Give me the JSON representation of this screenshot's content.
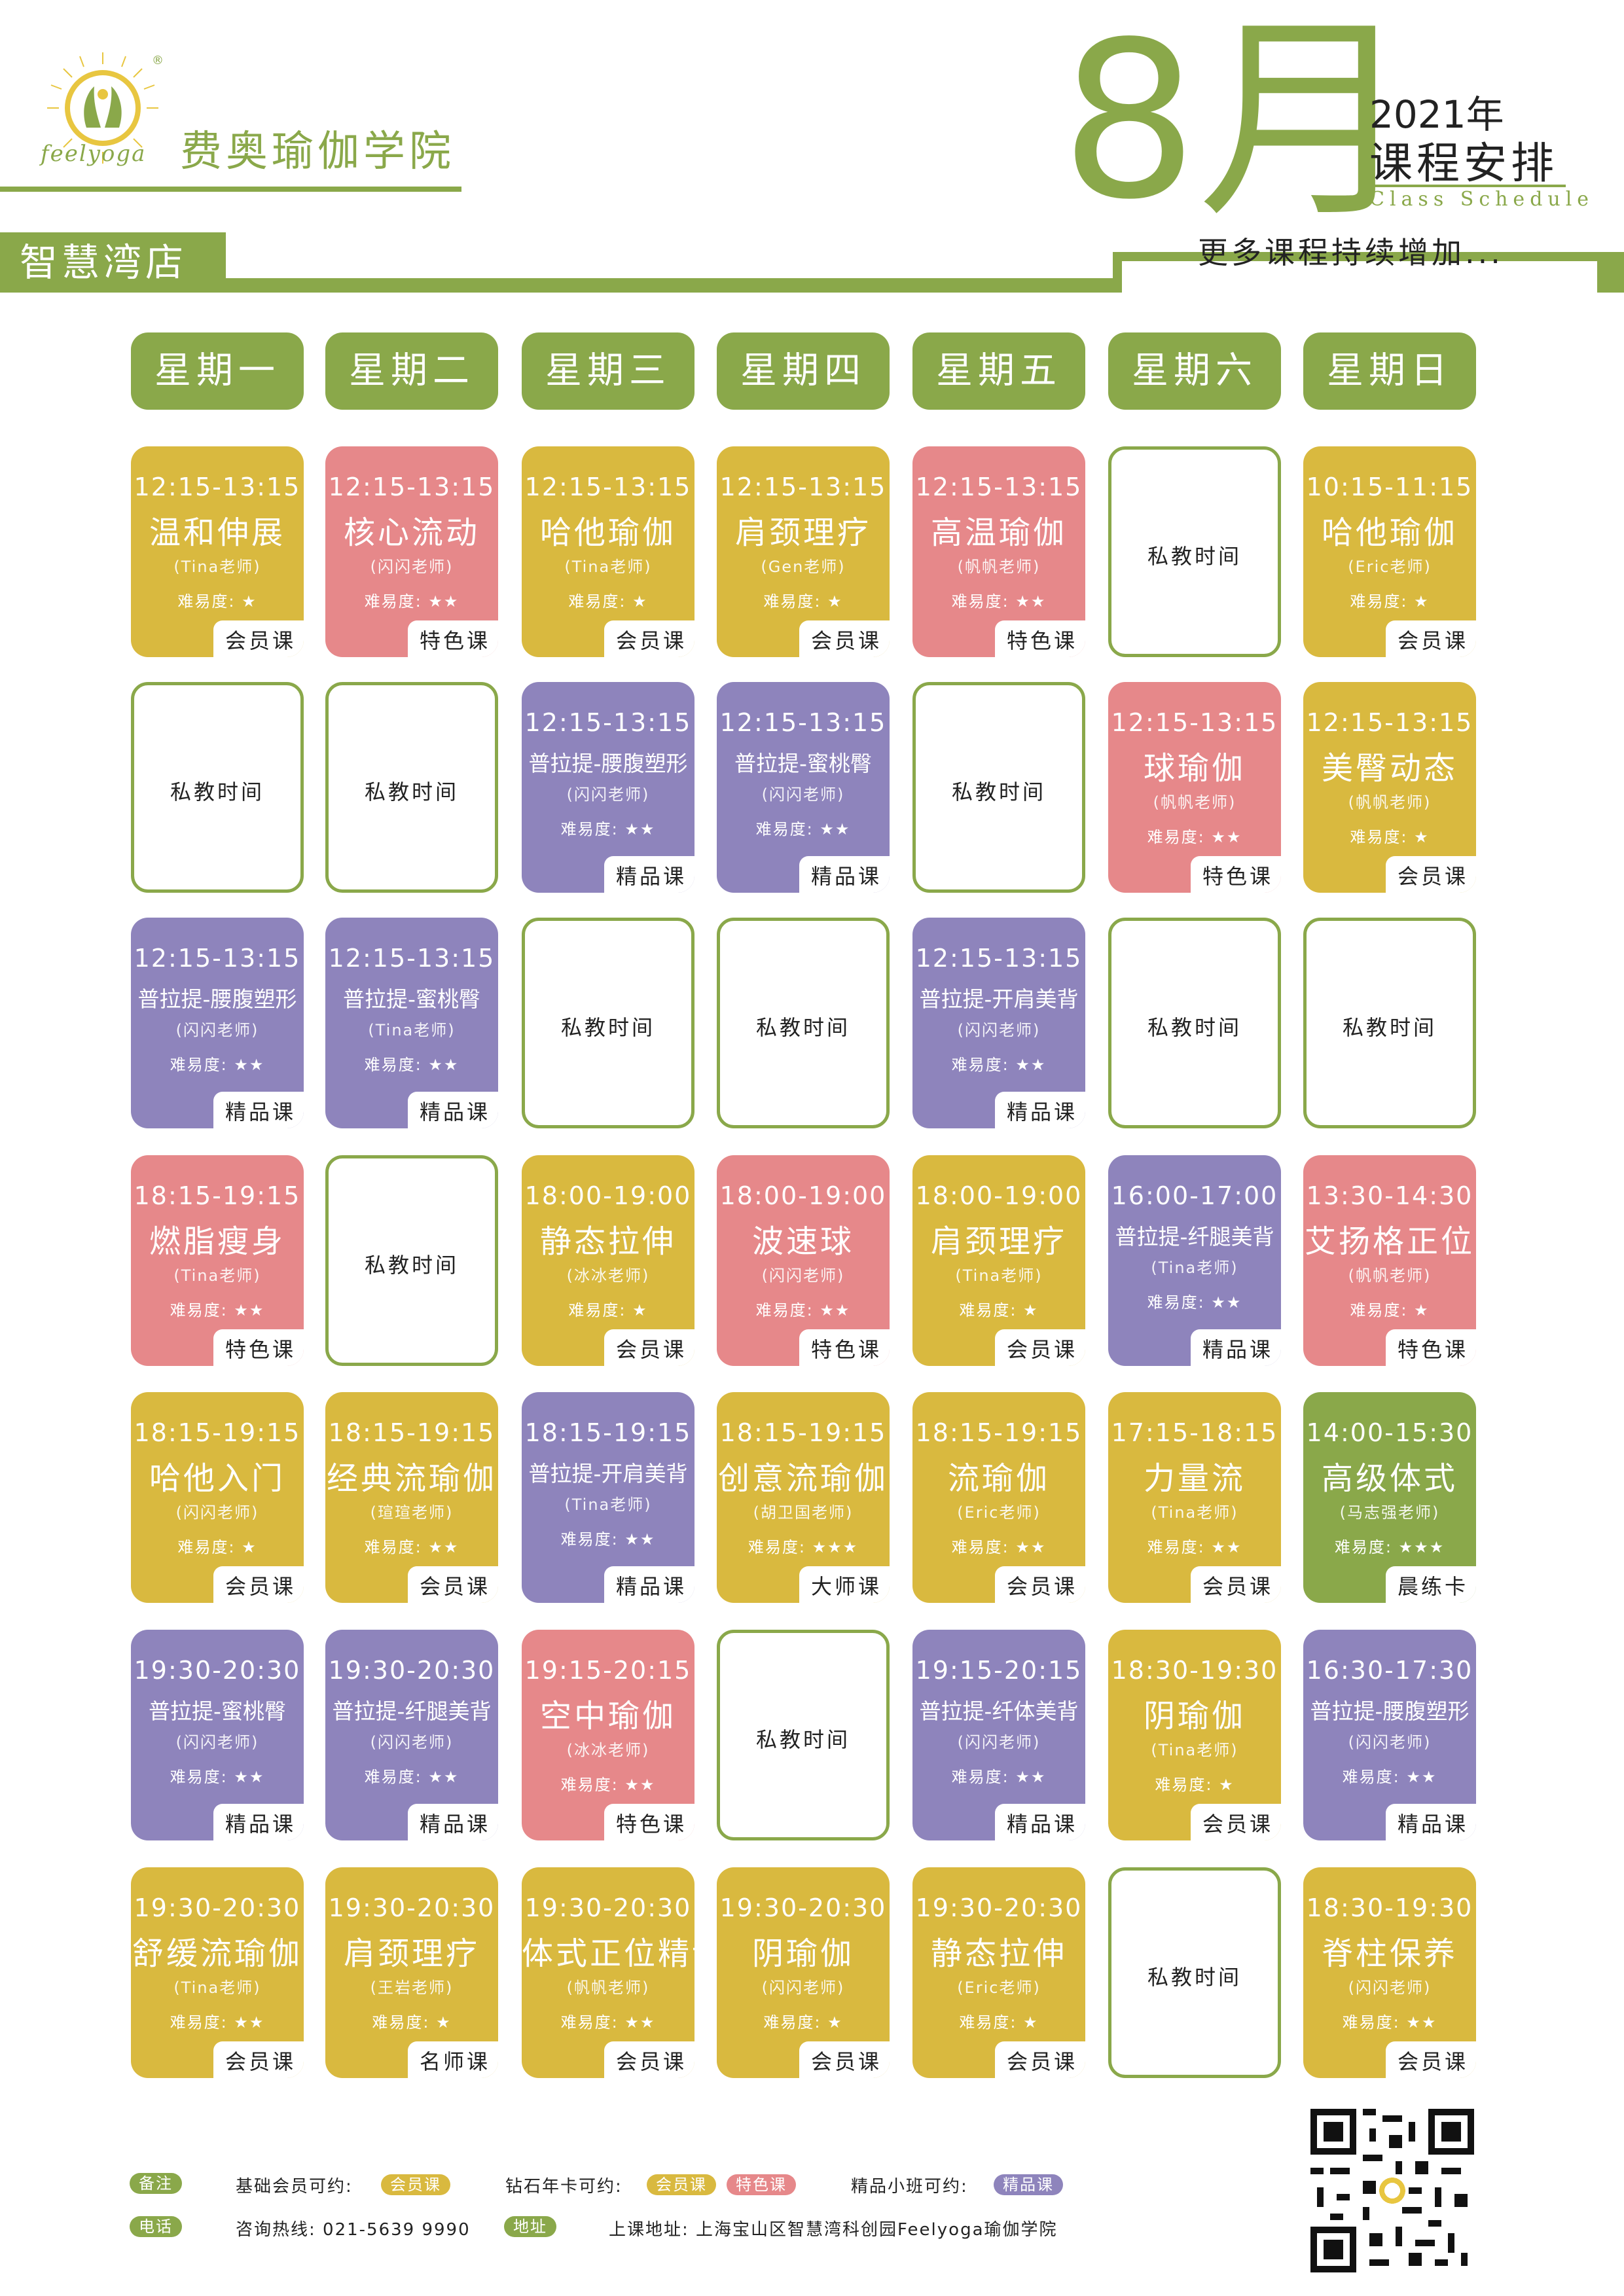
{
  "brand": {
    "logo_text": "feelyoga",
    "name": "费奥瑜伽学院"
  },
  "branch": "智慧湾店",
  "header": {
    "month": "8月",
    "year": "2021年",
    "title": "课程安排",
    "title_en": "Class Schedule",
    "more": "更多课程持续增加..."
  },
  "colors": {
    "green": "#8aa84a",
    "yellow": "#d9b93f",
    "pink": "#e6888a",
    "purple": "#8e84bc"
  },
  "days": [
    "星期一",
    "星期二",
    "星期三",
    "星期四",
    "星期五",
    "星期六",
    "星期日"
  ],
  "private_label": "私教时间",
  "difficulty_label": "难易度:",
  "schedule": [
    [
      {
        "time": "12:15-13:15",
        "name": "温和伸展",
        "teacher": "(Tina老师)",
        "stars": 1,
        "tag": "会员课",
        "color": "yellow"
      },
      {
        "time": "12:15-13:15",
        "name": "核心流动",
        "teacher": "(闪闪老师)",
        "stars": 2,
        "tag": "特色课",
        "color": "pink"
      },
      {
        "time": "12:15-13:15",
        "name": "哈他瑜伽",
        "teacher": "(Tina老师)",
        "stars": 1,
        "tag": "会员课",
        "color": "yellow"
      },
      {
        "time": "12:15-13:15",
        "name": "肩颈理疗",
        "teacher": "(Gen老师)",
        "stars": 1,
        "tag": "会员课",
        "color": "yellow"
      },
      {
        "time": "12:15-13:15",
        "name": "高温瑜伽",
        "teacher": "(帆帆老师)",
        "stars": 2,
        "tag": "特色课",
        "color": "pink"
      },
      {
        "private": true
      },
      {
        "time": "10:15-11:15",
        "name": "哈他瑜伽",
        "teacher": "(Eric老师)",
        "stars": 1,
        "tag": "会员课",
        "color": "yellow"
      }
    ],
    [
      {
        "private": true
      },
      {
        "private": true
      },
      {
        "time": "12:15-13:15",
        "name": "普拉提-腰腹塑形",
        "teacher": "(闪闪老师)",
        "stars": 2,
        "tag": "精品课",
        "color": "purple",
        "small": true
      },
      {
        "time": "12:15-13:15",
        "name": "普拉提-蜜桃臀",
        "teacher": "(闪闪老师)",
        "stars": 2,
        "tag": "精品课",
        "color": "purple",
        "small": true
      },
      {
        "private": true
      },
      {
        "time": "12:15-13:15",
        "name": "球瑜伽",
        "teacher": "(帆帆老师)",
        "stars": 2,
        "tag": "特色课",
        "color": "pink"
      },
      {
        "time": "12:15-13:15",
        "name": "美臀动态",
        "teacher": "(帆帆老师)",
        "stars": 1,
        "tag": "会员课",
        "color": "yellow"
      }
    ],
    [
      {
        "time": "12:15-13:15",
        "name": "普拉提-腰腹塑形",
        "teacher": "(闪闪老师)",
        "stars": 2,
        "tag": "精品课",
        "color": "purple",
        "small": true
      },
      {
        "time": "12:15-13:15",
        "name": "普拉提-蜜桃臀",
        "teacher": "(Tina老师)",
        "stars": 2,
        "tag": "精品课",
        "color": "purple",
        "small": true
      },
      {
        "private": true
      },
      {
        "private": true
      },
      {
        "time": "12:15-13:15",
        "name": "普拉提-开肩美背",
        "teacher": "(闪闪老师)",
        "stars": 2,
        "tag": "精品课",
        "color": "purple",
        "small": true
      },
      {
        "private": true
      },
      {
        "private": true
      }
    ],
    [
      {
        "time": "18:15-19:15",
        "name": "燃脂瘦身",
        "teacher": "(Tina老师)",
        "stars": 2,
        "tag": "特色课",
        "color": "pink"
      },
      {
        "private": true
      },
      {
        "time": "18:00-19:00",
        "name": "静态拉伸",
        "teacher": "(冰冰老师)",
        "stars": 1,
        "tag": "会员课",
        "color": "yellow"
      },
      {
        "time": "18:00-19:00",
        "name": "波速球",
        "teacher": "(闪闪老师)",
        "stars": 2,
        "tag": "特色课",
        "color": "pink"
      },
      {
        "time": "18:00-19:00",
        "name": "肩颈理疗",
        "teacher": "(Tina老师)",
        "stars": 1,
        "tag": "会员课",
        "color": "yellow"
      },
      {
        "time": "16:00-17:00",
        "name": "普拉提-纤腿美背",
        "teacher": "(Tina老师)",
        "stars": 2,
        "tag": "精品课",
        "color": "purple",
        "small": true
      },
      {
        "time": "13:30-14:30",
        "name": "艾扬格正位",
        "teacher": "(帆帆老师)",
        "stars": 1,
        "tag": "特色课",
        "color": "pink"
      }
    ],
    [
      {
        "time": "18:15-19:15",
        "name": "哈他入门",
        "teacher": "(闪闪老师)",
        "stars": 1,
        "tag": "会员课",
        "color": "yellow"
      },
      {
        "time": "18:15-19:15",
        "name": "经典流瑜伽",
        "teacher": "(瑄瑄老师)",
        "stars": 2,
        "tag": "会员课",
        "color": "yellow"
      },
      {
        "time": "18:15-19:15",
        "name": "普拉提-开肩美背",
        "teacher": "(Tina老师)",
        "stars": 2,
        "tag": "精品课",
        "color": "purple",
        "small": true
      },
      {
        "time": "18:15-19:15",
        "name": "创意流瑜伽",
        "teacher": "(胡卫国老师)",
        "stars": 3,
        "tag": "大师课",
        "color": "yellow"
      },
      {
        "time": "18:15-19:15",
        "name": "流瑜伽",
        "teacher": "(Eric老师)",
        "stars": 2,
        "tag": "会员课",
        "color": "yellow"
      },
      {
        "time": "17:15-18:15",
        "name": "力量流",
        "teacher": "(Tina老师)",
        "stars": 2,
        "tag": "会员课",
        "color": "yellow"
      },
      {
        "time": "14:00-15:30",
        "name": "高级体式",
        "teacher": "(马志强老师)",
        "stars": 3,
        "tag": "晨练卡",
        "color": "green"
      }
    ],
    [
      {
        "time": "19:30-20:30",
        "name": "普拉提-蜜桃臀",
        "teacher": "(闪闪老师)",
        "stars": 2,
        "tag": "精品课",
        "color": "purple",
        "small": true
      },
      {
        "time": "19:30-20:30",
        "name": "普拉提-纤腿美背",
        "teacher": "(闪闪老师)",
        "stars": 2,
        "tag": "精品课",
        "color": "purple",
        "small": true
      },
      {
        "time": "19:15-20:15",
        "name": "空中瑜伽",
        "teacher": "(冰冰老师)",
        "stars": 2,
        "tag": "特色课",
        "color": "pink"
      },
      {
        "private": true
      },
      {
        "time": "19:15-20:15",
        "name": "普拉提-纤体美背",
        "teacher": "(闪闪老师)",
        "stars": 2,
        "tag": "精品课",
        "color": "purple",
        "small": true
      },
      {
        "time": "18:30-19:30",
        "name": "阴瑜伽",
        "teacher": "(Tina老师)",
        "stars": 1,
        "tag": "会员课",
        "color": "yellow"
      },
      {
        "time": "16:30-17:30",
        "name": "普拉提-腰腹塑形",
        "teacher": "(闪闪老师)",
        "stars": 2,
        "tag": "精品课",
        "color": "purple",
        "small": true
      }
    ],
    [
      {
        "time": "19:30-20:30",
        "name": "舒缓流瑜伽",
        "teacher": "(Tina老师)",
        "stars": 2,
        "tag": "会员课",
        "color": "yellow"
      },
      {
        "time": "19:30-20:30",
        "name": "肩颈理疗",
        "teacher": "(王岩老师)",
        "stars": 1,
        "tag": "名师课",
        "color": "yellow"
      },
      {
        "time": "19:30-20:30",
        "name": "体式正位精讲",
        "teacher": "(帆帆老师)",
        "stars": 2,
        "tag": "会员课",
        "color": "yellow"
      },
      {
        "time": "19:30-20:30",
        "name": "阴瑜伽",
        "teacher": "(闪闪老师)",
        "stars": 1,
        "tag": "会员课",
        "color": "yellow"
      },
      {
        "time": "19:30-20:30",
        "name": "静态拉伸",
        "teacher": "(Eric老师)",
        "stars": 1,
        "tag": "会员课",
        "color": "yellow"
      },
      {
        "private": true
      },
      {
        "time": "18:30-19:30",
        "name": "脊柱保养",
        "teacher": "(闪闪老师)",
        "stars": 2,
        "tag": "会员课",
        "color": "yellow"
      }
    ]
  ],
  "footer": {
    "note_label": "备注",
    "basic_label": "基础会员可约:",
    "basic_tag": "会员课",
    "diamond_label": "钻石年卡可约:",
    "diamond_tags": [
      "会员课",
      "特色课"
    ],
    "boutique_label": "精品小班可约:",
    "boutique_tag": "精品课",
    "phone_label": "电话",
    "phone_text": "咨询热线: 021-5639 9990",
    "address_label": "地址",
    "address_text": "上课地址: 上海宝山区智慧湾科创园Feelyoga瑜伽学院"
  }
}
